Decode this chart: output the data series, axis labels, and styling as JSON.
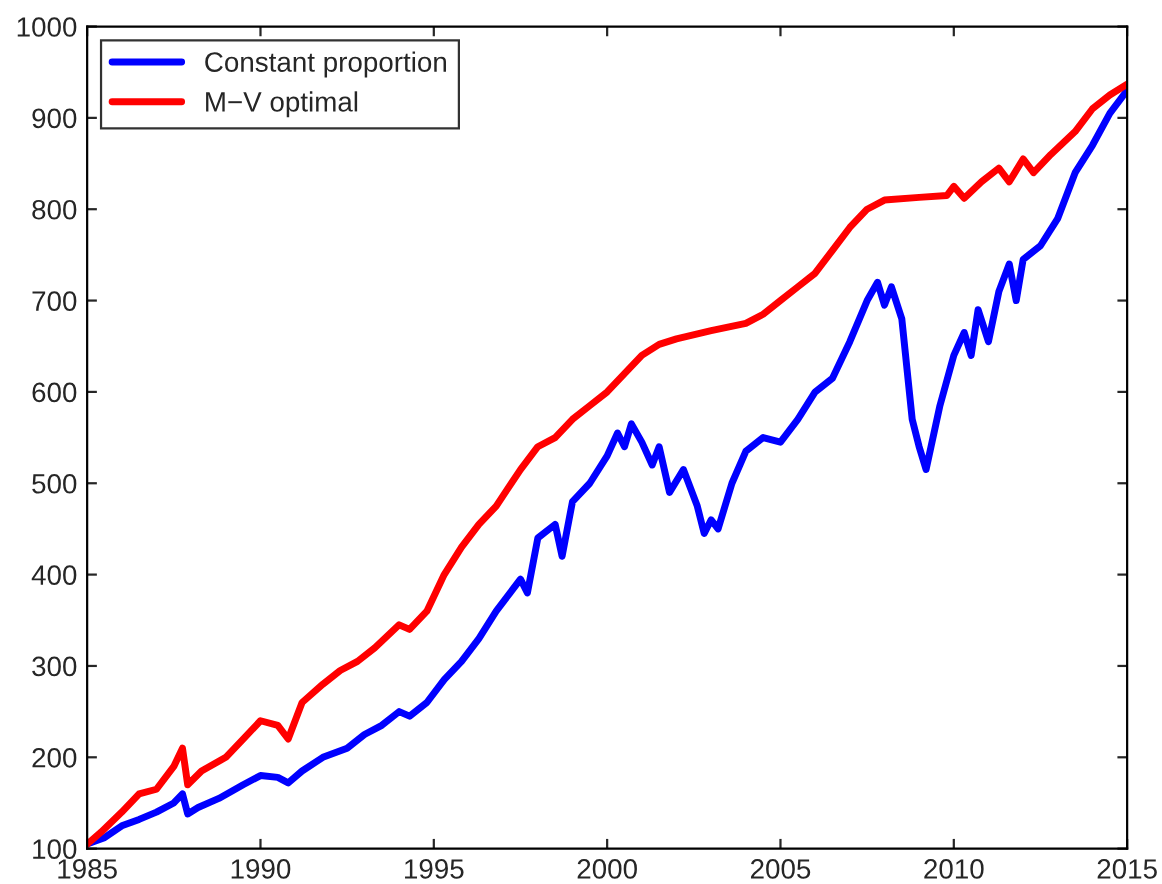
{
  "chart_data": {
    "type": "line",
    "xlim": [
      1985,
      2015
    ],
    "ylim": [
      100,
      1000
    ],
    "xticks": [
      1985,
      1990,
      1995,
      2000,
      2005,
      2010,
      2015
    ],
    "yticks": [
      100,
      200,
      300,
      400,
      500,
      600,
      700,
      800,
      900,
      1000
    ],
    "grid": false,
    "legend": "top left",
    "marker": "none",
    "line_style": "solid",
    "series": [
      {
        "name": "Constant proportion",
        "color": "#0000ff",
        "x": [
          1985.0,
          1985.5,
          1986.0,
          1986.5,
          1987.0,
          1987.5,
          1987.75,
          1987.9,
          1988.2,
          1988.8,
          1989.5,
          1990.0,
          1990.5,
          1990.8,
          1991.2,
          1991.8,
          1992.5,
          1993.0,
          1993.5,
          1994.0,
          1994.3,
          1994.8,
          1995.3,
          1995.8,
          1996.3,
          1996.8,
          1997.2,
          1997.5,
          1997.7,
          1998.0,
          1998.5,
          1998.7,
          1999.0,
          1999.5,
          2000.0,
          2000.3,
          2000.5,
          2000.7,
          2001.0,
          2001.3,
          2001.5,
          2001.8,
          2002.2,
          2002.6,
          2002.8,
          2003.0,
          2003.2,
          2003.6,
          2004.0,
          2004.5,
          2005.0,
          2005.5,
          2006.0,
          2006.5,
          2007.0,
          2007.5,
          2007.8,
          2008.0,
          2008.2,
          2008.5,
          2008.8,
          2009.0,
          2009.2,
          2009.6,
          2010.0,
          2010.3,
          2010.5,
          2010.7,
          2011.0,
          2011.3,
          2011.6,
          2011.8,
          2012.0,
          2012.5,
          2013.0,
          2013.5,
          2014.0,
          2014.5,
          2015.0
        ],
        "values": [
          105,
          112,
          125,
          132,
          140,
          150,
          160,
          138,
          145,
          155,
          170,
          180,
          178,
          172,
          185,
          200,
          210,
          225,
          235,
          250,
          245,
          260,
          285,
          305,
          330,
          360,
          380,
          395,
          380,
          440,
          455,
          420,
          480,
          500,
          530,
          555,
          540,
          565,
          545,
          520,
          540,
          490,
          515,
          475,
          445,
          460,
          450,
          500,
          535,
          550,
          545,
          570,
          600,
          615,
          655,
          700,
          720,
          695,
          715,
          680,
          570,
          540,
          515,
          585,
          640,
          665,
          640,
          690,
          655,
          710,
          740,
          700,
          745,
          760,
          790,
          840,
          870,
          905,
          930
        ]
      },
      {
        "name": "M−V optimal",
        "color": "#ff0000",
        "x": [
          1985.0,
          1985.4,
          1986.0,
          1986.5,
          1987.0,
          1987.5,
          1987.75,
          1987.9,
          1988.3,
          1989.0,
          1989.5,
          1990.0,
          1990.5,
          1990.8,
          1991.2,
          1991.8,
          1992.3,
          1992.8,
          1993.3,
          1994.0,
          1994.3,
          1994.8,
          1995.3,
          1995.8,
          1996.3,
          1996.8,
          1997.5,
          1998.0,
          1998.5,
          1999.0,
          1999.5,
          2000.0,
          2000.5,
          2001.0,
          2001.5,
          2002.0,
          2003.0,
          2004.0,
          2004.5,
          2005.0,
          2005.5,
          2006.0,
          2006.5,
          2007.0,
          2007.5,
          2008.0,
          2009.0,
          2009.8,
          2010.0,
          2010.3,
          2010.8,
          2011.3,
          2011.6,
          2012.0,
          2012.3,
          2012.8,
          2013.5,
          2014.0,
          2014.5,
          2015.0
        ],
        "values": [
          105,
          118,
          140,
          160,
          165,
          190,
          210,
          170,
          185,
          200,
          220,
          240,
          235,
          220,
          260,
          280,
          295,
          305,
          320,
          345,
          340,
          360,
          400,
          430,
          455,
          475,
          515,
          540,
          550,
          570,
          585,
          600,
          620,
          640,
          652,
          658,
          667,
          675,
          685,
          700,
          715,
          730,
          755,
          780,
          800,
          810,
          813,
          815,
          825,
          812,
          830,
          845,
          830,
          855,
          840,
          860,
          885,
          910,
          925,
          937
        ]
      }
    ]
  }
}
